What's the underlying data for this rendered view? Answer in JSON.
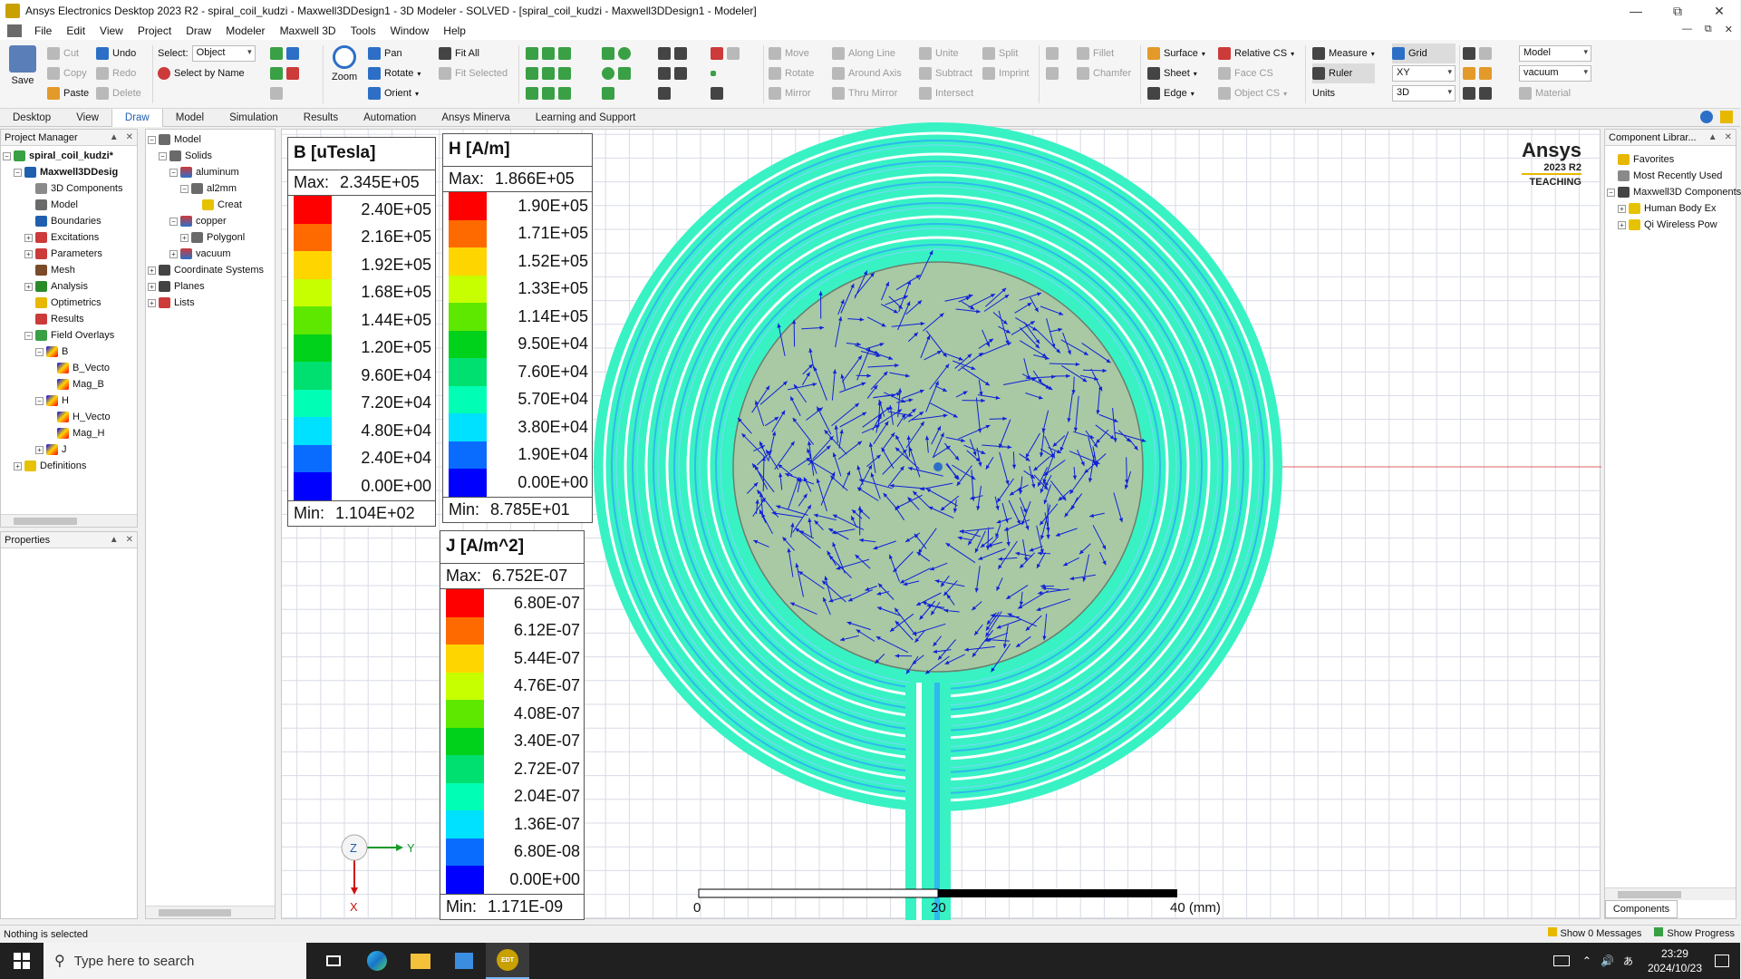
{
  "window": {
    "title": "Ansys Electronics Desktop 2023 R2 - spiral_coil_kudzi - Maxwell3DDesign1 - 3D Modeler - SOLVED - [spiral_coil_kudzi - Maxwell3DDesign1 - Modeler]"
  },
  "menu": [
    "File",
    "Edit",
    "View",
    "Project",
    "Draw",
    "Modeler",
    "Maxwell 3D",
    "Tools",
    "Window",
    "Help"
  ],
  "ribbon": {
    "save": "Save",
    "cut": "Cut",
    "copy": "Copy",
    "paste": "Paste",
    "undo": "Undo",
    "redo": "Redo",
    "delete": "Delete",
    "select_label": "Select:",
    "select_value": "Object",
    "select_by_name": "Select by Name",
    "pan": "Pan",
    "rotate_view": "Rotate",
    "orient": "Orient",
    "zoom": "Zoom",
    "fit_all": "Fit All",
    "fit_selected": "Fit Selected",
    "move": "Move",
    "rotate": "Rotate",
    "mirror": "Mirror",
    "along_line": "Along Line",
    "around_axis": "Around Axis",
    "thru_mirror": "Thru Mirror",
    "unite": "Unite",
    "subtract": "Subtract",
    "intersect": "Intersect",
    "split": "Split",
    "imprint": "Imprint",
    "fillet": "Fillet",
    "chamfer": "Chamfer",
    "surface": "Surface",
    "sheet": "Sheet",
    "edge": "Edge",
    "relative_cs": "Relative CS",
    "face_cs": "Face CS",
    "object_cs": "Object CS",
    "measure": "Measure",
    "ruler": "Ruler",
    "units": "Units",
    "grid": "Grid",
    "plane": "XY",
    "dim": "3D",
    "model_sel": "Model",
    "material_sel": "vacuum",
    "material": "Material"
  },
  "tabs": [
    "Desktop",
    "View",
    "Draw",
    "Model",
    "Simulation",
    "Results",
    "Automation",
    "Ansys Minerva",
    "Learning and Support"
  ],
  "active_tab": "Draw",
  "project_manager": {
    "title": "Project Manager",
    "items": [
      {
        "label": "spiral_coil_kudzi*",
        "bold": true
      },
      {
        "label": "Maxwell3DDesig",
        "bold": true
      },
      {
        "label": "3D Components"
      },
      {
        "label": "Model"
      },
      {
        "label": "Boundaries"
      },
      {
        "label": "Excitations"
      },
      {
        "label": "Parameters"
      },
      {
        "label": "Mesh"
      },
      {
        "label": "Analysis"
      },
      {
        "label": "Optimetrics"
      },
      {
        "label": "Results"
      },
      {
        "label": "Field Overlays"
      },
      {
        "label": "B"
      },
      {
        "label": "B_Vecto"
      },
      {
        "label": "Mag_B"
      },
      {
        "label": "H"
      },
      {
        "label": "H_Vecto"
      },
      {
        "label": "Mag_H"
      },
      {
        "label": "J"
      },
      {
        "label": "Definitions"
      }
    ]
  },
  "properties": {
    "title": "Properties"
  },
  "model_tree": {
    "items": [
      "Model",
      "Solids",
      "aluminum",
      "al2mm",
      "Creat",
      "copper",
      "Polygonl",
      "vacuum",
      "Coordinate Systems",
      "Planes",
      "Lists"
    ]
  },
  "component_library": {
    "title": "Component Librar...",
    "items": [
      "Favorites",
      "Most Recently Used",
      "Maxwell3D Components",
      "Human Body Ex",
      "Qi Wireless Pow"
    ],
    "footer_tab": "Components"
  },
  "legends": {
    "B": {
      "title": "B [uTesla]",
      "max_label": "Max:",
      "max": "2.345E+05",
      "min_label": "Min:",
      "min": "1.104E+02",
      "values": [
        "2.40E+05",
        "2.16E+05",
        "1.92E+05",
        "1.68E+05",
        "1.44E+05",
        "1.20E+05",
        "9.60E+04",
        "7.20E+04",
        "4.80E+04",
        "2.40E+04",
        "0.00E+00"
      ]
    },
    "H": {
      "title": "H [A/m]",
      "max_label": "Max:",
      "max": "1.866E+05",
      "min_label": "Min:",
      "min": "8.785E+01",
      "values": [
        "1.90E+05",
        "1.71E+05",
        "1.52E+05",
        "1.33E+05",
        "1.14E+05",
        "9.50E+04",
        "7.60E+04",
        "5.70E+04",
        "3.80E+04",
        "1.90E+04",
        "0.00E+00"
      ]
    },
    "J": {
      "title": "J [A/m^2]",
      "max_label": "Max:",
      "max": "6.752E-07",
      "min_label": "Min:",
      "min": "1.171E-09",
      "values": [
        "6.80E-07",
        "6.12E-07",
        "5.44E-07",
        "4.76E-07",
        "4.08E-07",
        "3.40E-07",
        "2.72E-07",
        "2.04E-07",
        "1.36E-07",
        "6.80E-08",
        "0.00E+00"
      ]
    },
    "colors": [
      "#ff0000",
      "#ff6a00",
      "#ffd500",
      "#c8ff00",
      "#5ee800",
      "#00d11a",
      "#00e070",
      "#00ffb4",
      "#00e0ff",
      "#0a6cff",
      "#0000ff"
    ]
  },
  "viewport": {
    "logo_name": "Ansys",
    "logo_version": "2023 R2",
    "logo_edition": "TEACHING",
    "axis_z": "Z",
    "axis_y": "Y",
    "axis_x": "X",
    "scale_labels": [
      "0",
      "20",
      "40 (mm)"
    ]
  },
  "status": {
    "left": "Nothing is selected",
    "messages": "Show 0 Messages",
    "progress": "Show Progress"
  },
  "taskbar": {
    "search_placeholder": "Type here to search",
    "edt_label": "EDT",
    "time": "23:29",
    "date": "2024/10/23"
  }
}
